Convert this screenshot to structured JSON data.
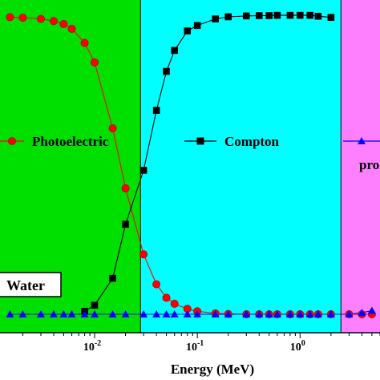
{
  "chart_data": {
    "type": "line",
    "xlabel": "Energy (MeV)",
    "xscale": "log",
    "xlim": [
      0.0012,
      6
    ],
    "ylim": [
      0,
      1
    ],
    "x_ticks": [
      0.01,
      0.1,
      1
    ],
    "x_tick_labels": [
      {
        "base": "10",
        "exp": "-2"
      },
      {
        "base": "10",
        "exp": "-1"
      },
      {
        "base": "10",
        "exp": "0"
      }
    ],
    "regions": [
      {
        "from": 0.0012,
        "to": 0.028,
        "color": "#00e000"
      },
      {
        "from": 0.028,
        "to": 2.5,
        "color": "#00ffff"
      },
      {
        "from": 2.5,
        "to": 6,
        "color": "#ff80ff"
      }
    ],
    "annotation": "Water",
    "legend_placement": "middle",
    "series": [
      {
        "name": "Photoelectric",
        "color": "#ff0000",
        "marker": "circle",
        "x": [
          0.0015,
          0.002,
          0.003,
          0.004,
          0.005,
          0.006,
          0.008,
          0.01,
          0.015,
          0.02,
          0.03,
          0.04,
          0.05,
          0.06,
          0.08,
          0.1,
          0.15,
          0.2,
          0.3,
          0.4,
          0.5,
          0.6,
          0.8,
          1,
          1.25,
          1.5,
          2,
          3,
          4,
          5
        ],
        "y": [
          0.991,
          0.989,
          0.985,
          0.978,
          0.968,
          0.952,
          0.905,
          0.84,
          0.62,
          0.42,
          0.2,
          0.1,
          0.055,
          0.035,
          0.018,
          0.01,
          0.003,
          0.001,
          0,
          0,
          0,
          0,
          0,
          0,
          0,
          0,
          0,
          0,
          0,
          0
        ]
      },
      {
        "name": "Compton",
        "color": "#000000",
        "marker": "square",
        "x": [
          0.008,
          0.01,
          0.015,
          0.02,
          0.03,
          0.04,
          0.05,
          0.06,
          0.08,
          0.1,
          0.15,
          0.2,
          0.3,
          0.4,
          0.5,
          0.6,
          0.8,
          1,
          1.25,
          1.5,
          2
        ],
        "y": [
          0.01,
          0.03,
          0.12,
          0.3,
          0.48,
          0.68,
          0.81,
          0.88,
          0.945,
          0.963,
          0.985,
          0.992,
          0.995,
          0.996,
          0.996,
          0.997,
          0.997,
          0.997,
          0.997,
          0.994,
          0.99
        ]
      },
      {
        "name": "",
        "label_fragment": "pro",
        "color": "#0000ff",
        "marker": "triangle",
        "x": [
          0.0015,
          0.002,
          0.003,
          0.004,
          0.005,
          0.006,
          0.008,
          0.01,
          0.015,
          0.02,
          0.03,
          0.04,
          0.05,
          0.06,
          0.08,
          0.1,
          0.15,
          0.2,
          0.3,
          0.4,
          0.5,
          0.6,
          0.8,
          1,
          1.25,
          1.5,
          2,
          3,
          4,
          5
        ],
        "y": [
          0,
          0,
          0,
          0,
          0,
          0,
          0,
          0,
          0,
          0,
          0,
          0,
          0,
          0,
          0,
          0,
          0,
          0,
          0,
          0,
          0,
          0,
          0,
          0,
          0,
          0,
          0,
          0,
          0.005,
          0.012
        ]
      }
    ]
  }
}
